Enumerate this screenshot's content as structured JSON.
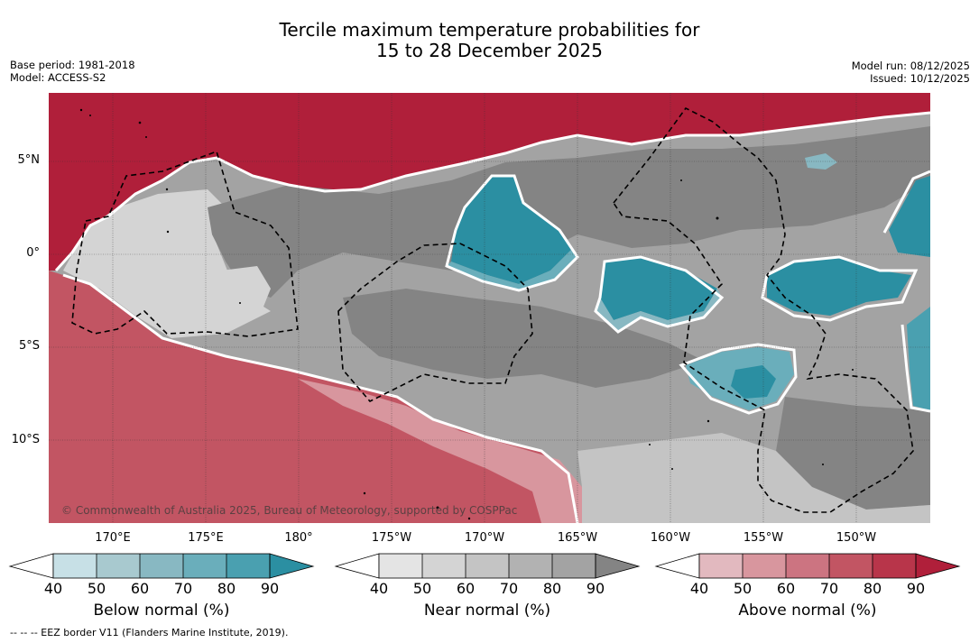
{
  "title_line1": "Tercile maximum temperature probabilities for",
  "title_line2": "15 to 28 December 2025",
  "meta": {
    "base_period": "Base period: 1981-2018",
    "model": "Model: ACCESS-S2",
    "model_run": "Model run: 08/12/2025",
    "issued": "Issued: 10/12/2025"
  },
  "map": {
    "lat_labels": [
      "5°N",
      "0°",
      "5°S",
      "10°S"
    ],
    "lon_labels": [
      "170°E",
      "175°E",
      "180°",
      "175°W",
      "170°W",
      "165°W",
      "160°W",
      "155°W",
      "150°W"
    ],
    "copyright": "© Commonwealth of Australia 2025, Bureau of Meteorology, supported by COSPPac",
    "regions": [
      {
        "category": "above",
        "level": 90
      },
      {
        "category": "above",
        "level": 80
      },
      {
        "category": "near",
        "level": 50
      },
      {
        "category": "near",
        "level": 60
      },
      {
        "category": "near",
        "level": 70
      },
      {
        "category": "near",
        "level": 80
      },
      {
        "category": "below",
        "level": 80
      },
      {
        "category": "below",
        "level": 90
      },
      {
        "category": "below",
        "level": 70
      },
      {
        "category": "below",
        "level": 60
      }
    ]
  },
  "colorbars": [
    {
      "id": "below",
      "label": "Below normal (%)",
      "ticks": [
        "40",
        "50",
        "60",
        "70",
        "80",
        "90"
      ],
      "colors": [
        "#ffffff",
        "#c7e0e6",
        "#a8c9cf",
        "#88b8c2",
        "#6aaebb",
        "#4aa0b0",
        "#2b8fa2"
      ]
    },
    {
      "id": "near",
      "label": "Near normal (%)",
      "ticks": [
        "40",
        "50",
        "60",
        "70",
        "80",
        "90"
      ],
      "colors": [
        "#ffffff",
        "#e4e4e4",
        "#d4d4d4",
        "#c4c4c4",
        "#b2b2b2",
        "#a3a3a3",
        "#848484"
      ]
    },
    {
      "id": "above",
      "label": "Above normal (%)",
      "ticks": [
        "40",
        "50",
        "60",
        "70",
        "80",
        "90"
      ],
      "colors": [
        "#ffffff",
        "#e2b9bf",
        "#d8969e",
        "#cc7481",
        "#c25563",
        "#b8354a",
        "#b01f3a"
      ]
    }
  ],
  "footnote": "--  --  -- EEZ border V11 (Flanders Marine Institute, 2019)."
}
